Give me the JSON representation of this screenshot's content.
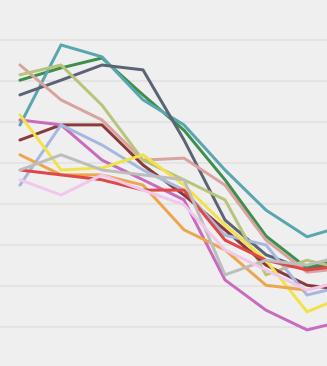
{
  "chart_data": {
    "type": "line",
    "categories": [
      null,
      null,
      null,
      null,
      null,
      null,
      null,
      null,
      null
    ],
    "ylim": [
      0,
      9
    ],
    "yticks": [
      1,
      2,
      3,
      4,
      5,
      6,
      7,
      8
    ],
    "grid": true,
    "series": [
      {
        "color": "#3e8e4e",
        "values": [
          7.02,
          7.32,
          7.56,
          6.66,
          5.8,
          4.59,
          3.22,
          2.44,
          2.68
        ]
      },
      {
        "color": "#5aa6b0",
        "values": [
          5.93,
          7.88,
          7.59,
          6.54,
          5.93,
          4.83,
          3.85,
          3.2,
          3.49
        ]
      },
      {
        "color": "#5b6474",
        "values": [
          6.66,
          7.02,
          7.39,
          7.27,
          5.56,
          3.61,
          2.76,
          2.39,
          2.59
        ]
      },
      {
        "color": "#d9a3a0",
        "values": [
          7.39,
          6.54,
          6.05,
          5.07,
          5.12,
          4.46,
          3.12,
          2.34,
          2.44
        ]
      },
      {
        "color": "#b9c47a",
        "values": [
          7.15,
          7.39,
          6.41,
          5.07,
          4.59,
          4.1,
          2.27,
          2.63,
          2.39
        ]
      },
      {
        "color": "#8b3a3a",
        "values": [
          5.56,
          5.93,
          5.93,
          4.95,
          4.22,
          3.37,
          2.51,
          2.02,
          1.9
        ]
      },
      {
        "color": "#c86bbf",
        "values": [
          6.05,
          5.93,
          5.07,
          4.59,
          4.1,
          2.15,
          1.41,
          0.93,
          1.17
        ]
      },
      {
        "color": "#a7b8e0",
        "values": [
          4.46,
          5.93,
          5.44,
          4.83,
          4.34,
          3.24,
          3.0,
          1.78,
          2.02
        ]
      },
      {
        "color": "#f2e24a",
        "values": [
          6.17,
          4.83,
          4.88,
          5.2,
          4.46,
          3.49,
          2.63,
          1.37,
          1.78
        ]
      },
      {
        "color": "#eda54e",
        "values": [
          5.2,
          4.71,
          4.71,
          4.46,
          3.37,
          2.88,
          2.02,
          1.9,
          2.15
        ]
      },
      {
        "color": "#e04848",
        "values": [
          4.83,
          4.71,
          4.59,
          4.34,
          4.34,
          3.12,
          2.63,
          2.39,
          2.51
        ]
      },
      {
        "color": "#bdbdbd",
        "values": [
          4.83,
          5.2,
          4.83,
          4.71,
          4.59,
          2.27,
          2.63,
          2.51,
          2.76
        ]
      },
      {
        "color": "#f0c8ec",
        "values": [
          4.59,
          4.22,
          4.71,
          4.34,
          3.98,
          2.88,
          2.39,
          1.9,
          2.15
        ]
      }
    ]
  }
}
